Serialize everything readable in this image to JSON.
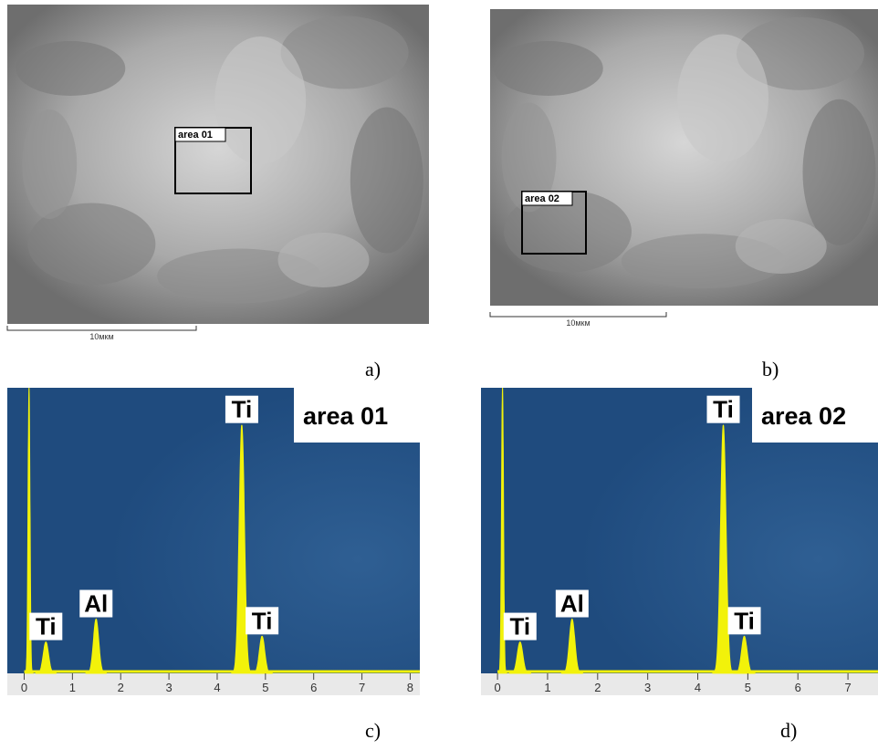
{
  "panels": [
    {
      "label": "a)",
      "scale_bar": "10мкм",
      "area": "area 01"
    },
    {
      "label": "b)",
      "scale_bar": "10мкм",
      "area": "area 02"
    },
    {
      "label": "c)",
      "area": "area 01",
      "xlim": [
        -0.35,
        8.2
      ],
      "ylim": [
        0,
        100
      ],
      "xticks": [
        0,
        1,
        2,
        3,
        4,
        5,
        6,
        7,
        8
      ],
      "peaks": [
        {
          "energy": 0.1,
          "height": 100
        },
        {
          "label": "Ti",
          "energy": 0.45,
          "height": 11
        },
        {
          "label": "Al",
          "energy": 1.49,
          "height": 19
        },
        {
          "label": "Ti",
          "energy": 4.51,
          "height": 87
        },
        {
          "label": "Ti",
          "energy": 4.93,
          "height": 13
        }
      ]
    },
    {
      "label": "d)",
      "area": "area 02",
      "xlim": [
        -0.33,
        7.6
      ],
      "ylim": [
        0,
        100
      ],
      "xticks": [
        0,
        1,
        2,
        3,
        4,
        5,
        6,
        7
      ],
      "peaks": [
        {
          "energy": 0.1,
          "height": 100
        },
        {
          "label": "Ti",
          "energy": 0.45,
          "height": 11
        },
        {
          "label": "Al",
          "energy": 1.49,
          "height": 19
        },
        {
          "label": "Ti",
          "energy": 4.51,
          "height": 87
        },
        {
          "label": "Ti",
          "energy": 4.93,
          "height": 13
        }
      ]
    }
  ]
}
